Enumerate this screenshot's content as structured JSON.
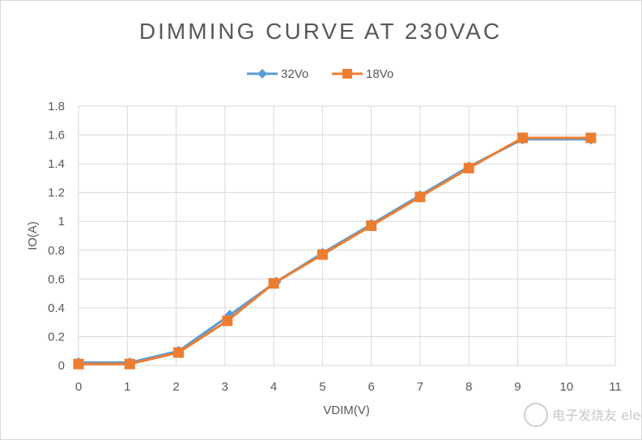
{
  "chart_data": {
    "type": "line",
    "title": "DIMMING CURVE AT 230VAC",
    "xlabel": "VDIM(V)",
    "ylabel": "IO(A)",
    "xlim": [
      0,
      11
    ],
    "ylim": [
      0,
      1.8
    ],
    "xticks": [
      "0",
      "1",
      "2",
      "3",
      "4",
      "5",
      "6",
      "7",
      "8",
      "9",
      "10",
      "11"
    ],
    "yticks": [
      "0",
      "0.2",
      "0.4",
      "0.6",
      "0.8",
      "1",
      "1.2",
      "1.4",
      "1.6",
      "1.8"
    ],
    "grid": true,
    "legend_position": "top",
    "series": [
      {
        "name": "32Vo",
        "marker": "diamond",
        "color": "#5b9bd5",
        "x": [
          0,
          1.05,
          2.05,
          3.1,
          4.05,
          5.0,
          6.0,
          7.0,
          8.0,
          9.1,
          10.5
        ],
        "y": [
          0.02,
          0.02,
          0.1,
          0.35,
          0.58,
          0.78,
          0.98,
          1.18,
          1.38,
          1.57,
          1.57
        ]
      },
      {
        "name": "18Vo",
        "marker": "square",
        "color": "#ed7d31",
        "x": [
          0,
          1.05,
          2.05,
          3.05,
          4.0,
          5.0,
          6.0,
          7.0,
          8.0,
          9.1,
          10.5
        ],
        "y": [
          0.01,
          0.01,
          0.09,
          0.31,
          0.57,
          0.77,
          0.97,
          1.17,
          1.37,
          1.58,
          1.58
        ]
      }
    ]
  },
  "watermark": "电子发烧友 elecfans.com"
}
